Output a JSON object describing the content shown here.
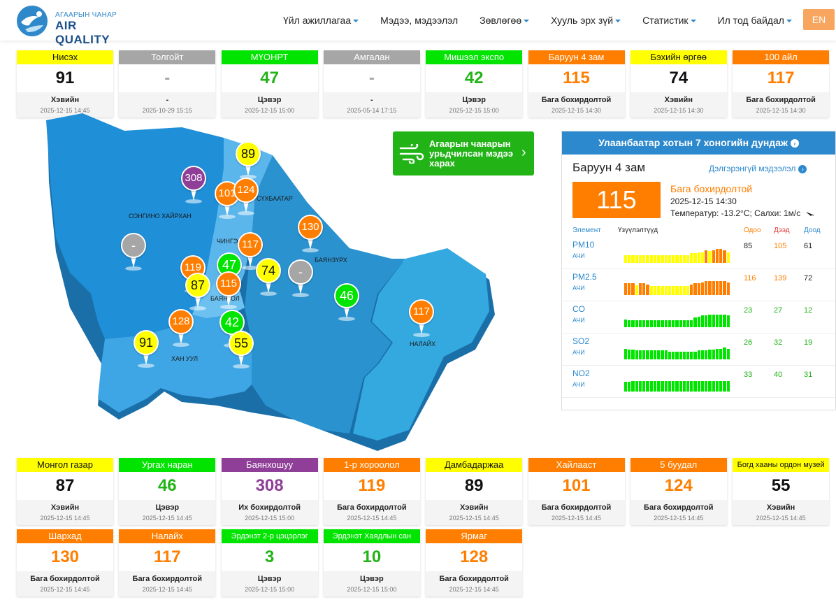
{
  "header": {
    "logo_small": "АГААРЫН ЧАНАР",
    "logo_big": "AIR QUALITY",
    "nav": [
      "Үйл ажиллагаа",
      "Мэдээ, мэдээлэл",
      "Зөвлөгөө",
      "Хууль эрх зүй",
      "Статистик",
      "Ил тод байдал"
    ],
    "nav_dropdown": [
      true,
      false,
      true,
      true,
      true,
      true
    ],
    "lang": "EN"
  },
  "colors": {
    "good": "#00e400",
    "moderate": "#ffff00",
    "unhealthy_sensitive": "#ff7e00",
    "unhealthy": "#8f3f97",
    "no_data": "#a6a6a6",
    "brand": "#2d89cd"
  },
  "top_cards": [
    {
      "name": "Нисэх",
      "value": "91",
      "status": "Хэвийн",
      "time": "2025-12-15 14:45",
      "color": "yellow"
    },
    {
      "name": "Толгойт",
      "value": "-",
      "status": "-",
      "time": "2025-10-29 15:15",
      "color": "gray"
    },
    {
      "name": "МҮОНРТ",
      "value": "47",
      "status": "Цэвэр",
      "time": "2025-12-15 15:00",
      "color": "green"
    },
    {
      "name": "Амгалан",
      "value": "-",
      "status": "-",
      "time": "2025-05-14 17:15",
      "color": "gray"
    },
    {
      "name": "Мишээл экспо",
      "value": "42",
      "status": "Цэвэр",
      "time": "2025-12-15 15:00",
      "color": "green"
    },
    {
      "name": "Баруун 4 зам",
      "value": "115",
      "status": "Бага бохирдолтой",
      "time": "2025-12-15 14:30",
      "color": "orange"
    },
    {
      "name": "Бэхийн өргөө",
      "value": "74",
      "status": "Хэвийн",
      "time": "2025-12-15 14:30",
      "color": "yellow"
    },
    {
      "name": "100 айл",
      "value": "117",
      "status": "Бага бохирдолтой",
      "time": "2025-12-15 14:30",
      "color": "orange"
    }
  ],
  "bottom_cards_1": [
    {
      "name": "Монгол газар",
      "value": "87",
      "status": "Хэвийн",
      "time": "2025-12-15 14:45",
      "color": "yellow"
    },
    {
      "name": "Ургах наран",
      "value": "46",
      "status": "Цэвэр",
      "time": "2025-12-15 14:45",
      "color": "green"
    },
    {
      "name": "Баянхошуу",
      "value": "308",
      "status": "Их бохирдолтой",
      "time": "2025-12-15 15:00",
      "color": "purple"
    },
    {
      "name": "1-р хороолол",
      "value": "119",
      "status": "Бага бохирдолтой",
      "time": "2025-12-15 14:45",
      "color": "orange"
    },
    {
      "name": "Дамбадаржаа",
      "value": "89",
      "status": "Хэвийн",
      "time": "2025-12-15 14:45",
      "color": "yellow"
    },
    {
      "name": "Хайлааст",
      "value": "101",
      "status": "Бага бохирдолтой",
      "time": "2025-12-15 14:45",
      "color": "orange"
    },
    {
      "name": "5 буудал",
      "value": "124",
      "status": "Бага бохирдолтой",
      "time": "2025-12-15 14:45",
      "color": "orange"
    },
    {
      "name": "Богд хааны ордон музей",
      "value": "55",
      "status": "Хэвийн",
      "time": "2025-12-15 14:45",
      "color": "yellow"
    }
  ],
  "bottom_cards_2": [
    {
      "name": "Шархад",
      "value": "130",
      "status": "Бага бохирдолтой",
      "time": "2025-12-15 14:45",
      "color": "orange"
    },
    {
      "name": "Налайх",
      "value": "117",
      "status": "Бага бохирдолтой",
      "time": "2025-12-15 14:45",
      "color": "orange"
    },
    {
      "name": "Эрдэнэт 2-р цэцэрлэг",
      "value": "3",
      "status": "Цэвэр",
      "time": "2025-12-15 15:00",
      "color": "green"
    },
    {
      "name": "Эрдэнэт Хаядлын сан",
      "value": "10",
      "status": "Цэвэр",
      "time": "2025-12-15 15:00",
      "color": "green"
    },
    {
      "name": "Ярмаг",
      "value": "128",
      "status": "Бага бохирдолтой",
      "time": "2025-12-15 14:45",
      "color": "orange"
    }
  ],
  "map": {
    "districts": [
      "СОНГИНО ХАЙРХАН",
      "БАЯНЗҮРХ",
      "ХАН УУЛ",
      "НАЛАЙХ",
      "ЧИНГЭ",
      "СҮХБААТАР",
      "БАЯН",
      "ОЛ"
    ],
    "pins": [
      {
        "value": "89",
        "color": "yellow"
      },
      {
        "value": "308",
        "color": "purple"
      },
      {
        "value": "101",
        "color": "orange"
      },
      {
        "value": "124",
        "color": "orange"
      },
      {
        "value": "130",
        "color": "orange"
      },
      {
        "value": "-",
        "color": "gray"
      },
      {
        "value": "117",
        "color": "orange"
      },
      {
        "value": "119",
        "color": "orange"
      },
      {
        "value": "47",
        "color": "green"
      },
      {
        "value": "74",
        "color": "yellow"
      },
      {
        "value": "-",
        "color": "gray"
      },
      {
        "value": "87",
        "color": "yellow"
      },
      {
        "value": "115",
        "color": "orange"
      },
      {
        "value": "46",
        "color": "green"
      },
      {
        "value": "117",
        "color": "orange"
      },
      {
        "value": "128",
        "color": "orange"
      },
      {
        "value": "42",
        "color": "green"
      },
      {
        "value": "91",
        "color": "yellow"
      },
      {
        "value": "55",
        "color": "yellow"
      }
    ]
  },
  "forecast_button": "Агаарын чанарын урьдчилсан мэдээ харах",
  "panel": {
    "title": "Улаанбаатар хотын 7 хоногийн дундаж",
    "station": "Баруун 4 зам",
    "detail_link": "Дэлгэрэнгүй мэдээлэл",
    "aqi": "115",
    "status": "Бага бохирдолтой",
    "time": "2025-12-15 14:30",
    "weather": "Температур: -13.2°C; Салхи: 1м/с",
    "headers": {
      "element": "Элемент",
      "indicators": "Үзүүлэлтүүд",
      "now": "Одоо",
      "max": "Дээд",
      "min": "Доод"
    },
    "pollutants": [
      {
        "name": "PM10",
        "unit": "АЧИ",
        "now": "85",
        "max": "105",
        "min": "61",
        "now_color": "#222",
        "max_color": "#ff7e00",
        "min_color": "#222"
      },
      {
        "name": "PM2.5",
        "unit": "АЧИ",
        "now": "116",
        "max": "139",
        "min": "72",
        "now_color": "#ff7e00",
        "max_color": "#ff7e00",
        "min_color": "#222"
      },
      {
        "name": "CO",
        "unit": "АЧИ",
        "now": "23",
        "max": "27",
        "min": "12",
        "now_color": "#22b317",
        "max_color": "#22b317",
        "min_color": "#22b317"
      },
      {
        "name": "SO2",
        "unit": "АЧИ",
        "now": "26",
        "max": "32",
        "min": "19",
        "now_color": "#22b317",
        "max_color": "#22b317",
        "min_color": "#22b317"
      },
      {
        "name": "NO2",
        "unit": "АЧИ",
        "now": "33",
        "max": "40",
        "min": "31",
        "now_color": "#22b317",
        "max_color": "#22b317",
        "min_color": "#22b317"
      }
    ]
  }
}
